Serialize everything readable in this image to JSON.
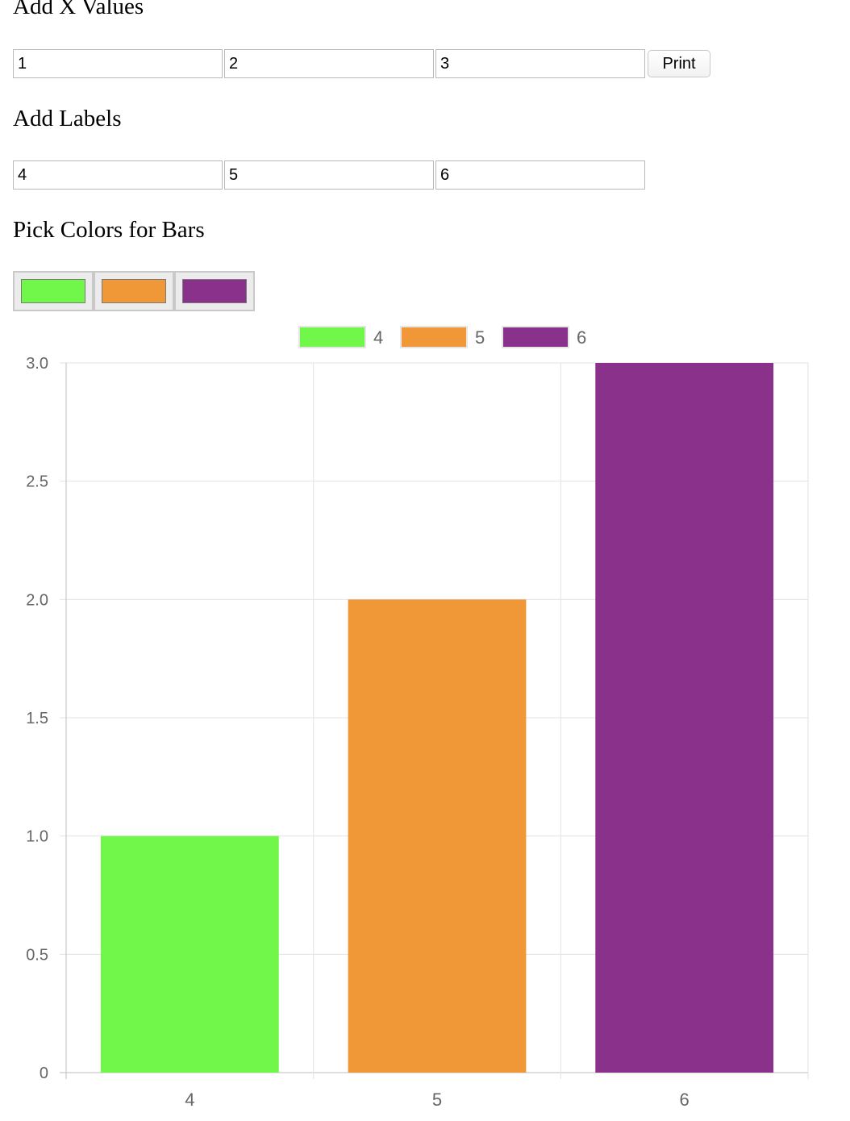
{
  "form": {
    "x_values_heading": "Add X Values",
    "x_values": [
      "1",
      "2",
      "3"
    ],
    "print_label": "Print",
    "labels_heading": "Add Labels",
    "labels": [
      "4",
      "5",
      "6"
    ],
    "colors_heading": "Pick Colors for Bars",
    "colors": [
      "#70f74a",
      "#f09737",
      "#8a318c"
    ]
  },
  "chart_data": {
    "type": "bar",
    "categories": [
      "4",
      "5",
      "6"
    ],
    "values": [
      1,
      2,
      3
    ],
    "colors": [
      "#70f74a",
      "#f09737",
      "#8a318c"
    ],
    "legend": [
      "4",
      "5",
      "6"
    ],
    "legend_position": "top",
    "ylim": [
      0,
      3
    ],
    "yticks": [
      "0",
      "0.5",
      "1.0",
      "1.5",
      "2.0",
      "2.5",
      "3.0"
    ],
    "grid": true
  }
}
